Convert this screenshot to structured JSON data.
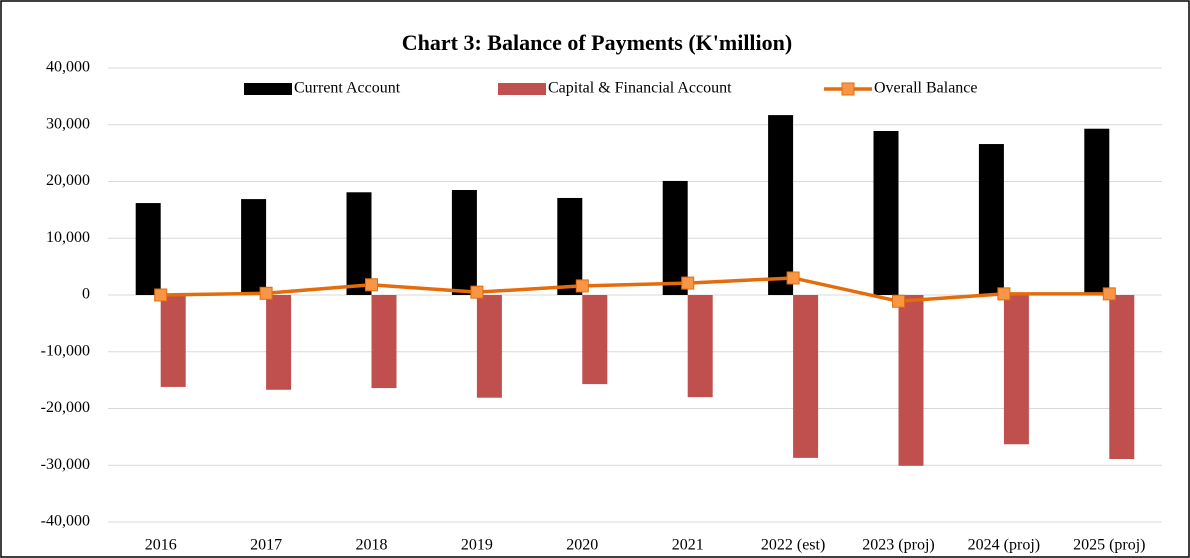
{
  "chart_data": {
    "type": "bar-line",
    "title": "Chart 3: Balance of Payments (K'million)",
    "categories": [
      "2016",
      "2017",
      "2018",
      "2019",
      "2020",
      "2021",
      "2022 (est)",
      "2023 (proj)",
      "2024 (proj)",
      "2025 (proj)"
    ],
    "series": [
      {
        "name": "Current Account",
        "type": "bar",
        "color": "#000000",
        "values": [
          16200,
          16900,
          18100,
          18500,
          17100,
          20100,
          31700,
          28900,
          26600,
          29300
        ]
      },
      {
        "name": "Capital & Financial Account",
        "type": "bar",
        "color": "#c0504d",
        "values": [
          -16200,
          -16700,
          -16400,
          -18100,
          -15700,
          -18000,
          -28700,
          -30100,
          -26300,
          -28900
        ]
      },
      {
        "name": "Overall Balance",
        "type": "line",
        "color": "#e46c0a",
        "marker_color": "#f79646",
        "values": [
          0,
          300,
          1800,
          500,
          1600,
          2100,
          3000,
          -1100,
          200,
          200
        ]
      }
    ],
    "ylim": [
      -40000,
      40000
    ],
    "yticks": [
      {
        "value": -40000,
        "label": "-40,000"
      },
      {
        "value": -30000,
        "label": "-30,000"
      },
      {
        "value": -20000,
        "label": "-20,000"
      },
      {
        "value": -10000,
        "label": "-10,000"
      },
      0,
      {
        "value": 10000,
        "label": "10,000"
      },
      {
        "value": 20000,
        "label": "20,000"
      },
      {
        "value": 30000,
        "label": "30,000"
      },
      {
        "value": 40000,
        "label": "40,000"
      }
    ],
    "grid": true,
    "legend": "top"
  }
}
